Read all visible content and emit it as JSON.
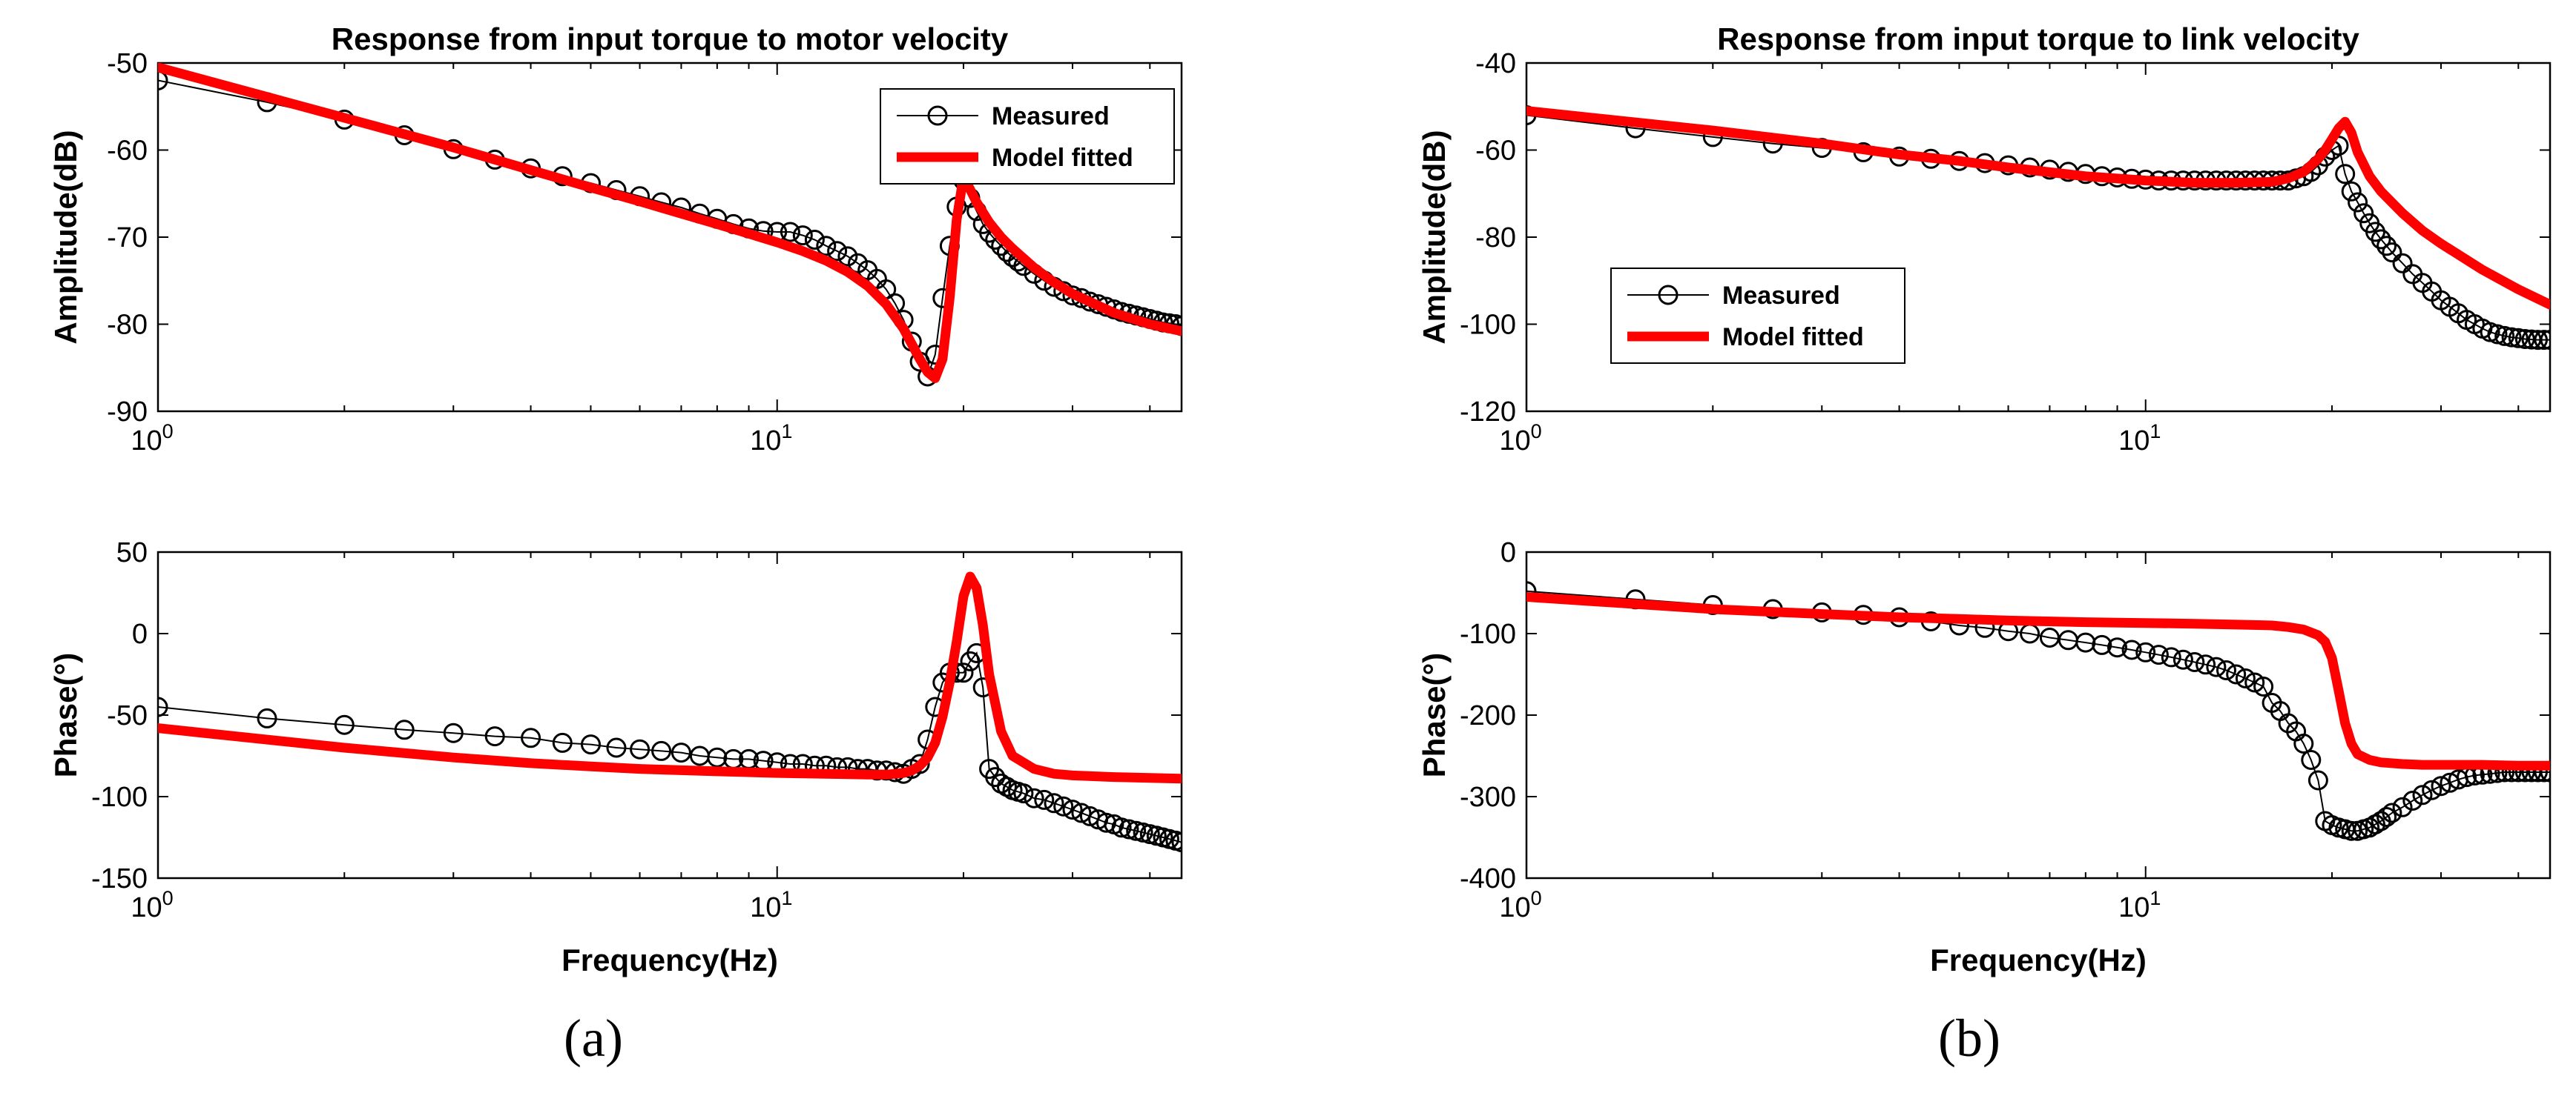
{
  "figure_labels": {
    "a": "(a)",
    "b": "(b)"
  },
  "colors": {
    "measured": "#000000",
    "model": "#ff0000",
    "axis": "#000000"
  },
  "chart_data": [
    {
      "type": "line",
      "panel": "a",
      "title": "Response from input torque to motor velocity",
      "xlabel": "",
      "ylabel": "Amplitude(dB)",
      "xscale": "log",
      "xlim": [
        1,
        45
      ],
      "ylim": [
        -90,
        -50
      ],
      "yticks": [
        -90,
        -80,
        -70,
        -60,
        -50
      ],
      "xtick_labels": [
        {
          "base": "10",
          "exp": "0"
        },
        {
          "base": "10",
          "exp": "1"
        }
      ],
      "legend": {
        "entries": [
          "Measured",
          "Model fitted"
        ],
        "position": "top-right"
      },
      "series": [
        {
          "name": "Measured",
          "style": "circles",
          "x": [
            1,
            1.5,
            2,
            2.5,
            3,
            3.5,
            4,
            4.5,
            5,
            5.5,
            6,
            6.5,
            7,
            7.5,
            8,
            8.5,
            9,
            9.5,
            10,
            10.5,
            11,
            11.5,
            12,
            12.5,
            13,
            13.5,
            14,
            14.5,
            15,
            15.5,
            16,
            16.5,
            17,
            17.5,
            18,
            18.5,
            19,
            19.5,
            20,
            20.5,
            21,
            21.5,
            22,
            22.5,
            23,
            23.5,
            24,
            24.5,
            25,
            26,
            27,
            28,
            29,
            30,
            31,
            32,
            33,
            34,
            35,
            36,
            37,
            38,
            39,
            40,
            41,
            42,
            43,
            44,
            45
          ],
          "y": [
            -52,
            -54.5,
            -56.5,
            -58.3,
            -59.9,
            -61.1,
            -62.1,
            -63,
            -63.8,
            -64.6,
            -65.3,
            -66,
            -66.6,
            -67.3,
            -67.9,
            -68.5,
            -69,
            -69.3,
            -69.4,
            -69.4,
            -69.8,
            -70.3,
            -71,
            -71.6,
            -72.2,
            -73,
            -73.8,
            -74.8,
            -76,
            -77.6,
            -79.5,
            -82,
            -84.3,
            -86,
            -83.5,
            -77,
            -71,
            -66.5,
            -63.5,
            -65.5,
            -67,
            -68.5,
            -69.5,
            -70.3,
            -71,
            -71.7,
            -72.3,
            -72.8,
            -73.3,
            -74.2,
            -75,
            -75.7,
            -76.2,
            -76.7,
            -77,
            -77.4,
            -77.7,
            -78,
            -78.3,
            -78.6,
            -78.8,
            -79,
            -79.2,
            -79.4,
            -79.6,
            -79.8,
            -79.9,
            -80,
            -80.2
          ]
        },
        {
          "name": "Model fitted",
          "style": "thick-line",
          "x": [
            1,
            2,
            3,
            4,
            5,
            6,
            7,
            8,
            9,
            10,
            11,
            12,
            13,
            14,
            15,
            16,
            17,
            17.5,
            18,
            18.5,
            19,
            19.5,
            20,
            21,
            22,
            23,
            24,
            26,
            28,
            30,
            35,
            40,
            45
          ],
          "y": [
            -50.5,
            -56.3,
            -59.7,
            -62.3,
            -64.3,
            -65.9,
            -67.3,
            -68.5,
            -69.6,
            -70.6,
            -71.6,
            -72.7,
            -74,
            -75.6,
            -77.7,
            -80.5,
            -84,
            -85.5,
            -86.2,
            -84,
            -77,
            -68,
            -63,
            -66,
            -68.3,
            -70,
            -71.3,
            -73.5,
            -75.2,
            -76.5,
            -78.7,
            -80,
            -80.8
          ]
        }
      ]
    },
    {
      "type": "line",
      "panel": "a",
      "title": "",
      "xlabel": "Frequency(Hz)",
      "ylabel": "Phase(°)",
      "xscale": "log",
      "xlim": [
        1,
        45
      ],
      "ylim": [
        -150,
        50
      ],
      "yticks": [
        -150,
        -100,
        -50,
        0,
        50
      ],
      "xtick_labels": [
        {
          "base": "10",
          "exp": "0"
        },
        {
          "base": "10",
          "exp": "1"
        }
      ],
      "series": [
        {
          "name": "Measured",
          "style": "circles",
          "x": [
            1,
            1.5,
            2,
            2.5,
            3,
            3.5,
            4,
            4.5,
            5,
            5.5,
            6,
            6.5,
            7,
            7.5,
            8,
            8.5,
            9,
            9.5,
            10,
            10.5,
            11,
            11.5,
            12,
            12.5,
            13,
            13.5,
            14,
            14.5,
            15,
            15.5,
            16,
            16.5,
            17,
            17.5,
            18,
            18.5,
            19,
            19.5,
            20,
            20.5,
            21,
            21.5,
            22,
            22.5,
            23,
            23.5,
            24,
            24.5,
            25,
            26,
            27,
            28,
            29,
            30,
            31,
            32,
            33,
            34,
            35,
            36,
            37,
            38,
            39,
            40,
            41,
            42,
            43,
            44,
            45
          ],
          "y": [
            -45,
            -52,
            -56,
            -59,
            -61,
            -63,
            -64,
            -67,
            -68,
            -70,
            -71,
            -72,
            -73,
            -75,
            -76,
            -77,
            -77,
            -78,
            -79,
            -80,
            -80,
            -81,
            -81,
            -82,
            -82,
            -83,
            -83,
            -84,
            -84,
            -85,
            -86,
            -83,
            -80,
            -65,
            -45,
            -30,
            -24,
            -24,
            -24,
            -17,
            -12,
            -33,
            -83,
            -88,
            -92,
            -94,
            -96,
            -97,
            -98,
            -101,
            -102,
            -104,
            -106,
            -108,
            -110,
            -112,
            -114,
            -116,
            -117,
            -119,
            -120,
            -121,
            -122,
            -123,
            -124,
            -125,
            -126,
            -127,
            -128
          ]
        },
        {
          "name": "Model fitted",
          "style": "thick-line",
          "x": [
            1,
            2,
            3,
            4,
            5,
            6,
            8,
            10,
            12,
            14,
            15,
            16,
            16.5,
            17,
            17.5,
            18,
            18.5,
            19,
            19.5,
            20,
            20.5,
            21,
            21.5,
            22,
            23,
            24,
            26,
            28,
            30,
            35,
            40,
            45
          ],
          "y": [
            -58,
            -70,
            -76,
            -79.5,
            -81.5,
            -83,
            -84.5,
            -85.5,
            -86,
            -86.5,
            -86.5,
            -85.5,
            -84,
            -81,
            -76,
            -67,
            -51,
            -30,
            -5,
            23,
            35,
            28,
            5,
            -25,
            -60,
            -75,
            -83,
            -86,
            -87,
            -88,
            -88.5,
            -89
          ]
        }
      ]
    },
    {
      "type": "line",
      "panel": "b",
      "title": "Response from input torque to link velocity",
      "xlabel": "",
      "ylabel": "Amplitude(dB)",
      "xscale": "log",
      "xlim": [
        1,
        45
      ],
      "ylim": [
        -120,
        -40
      ],
      "yticks": [
        -120,
        -100,
        -80,
        -60,
        -40
      ],
      "xtick_labels": [
        {
          "base": "10",
          "exp": "0"
        },
        {
          "base": "10",
          "exp": "1"
        }
      ],
      "legend": {
        "entries": [
          "Measured",
          "Model fitted"
        ],
        "position": "middle-left"
      },
      "series": [
        {
          "name": "Measured",
          "style": "circles",
          "x": [
            1,
            1.5,
            2,
            2.5,
            3,
            3.5,
            4,
            4.5,
            5,
            5.5,
            6,
            6.5,
            7,
            7.5,
            8,
            8.5,
            9,
            9.5,
            10,
            10.5,
            11,
            11.5,
            12,
            12.5,
            13,
            13.5,
            14,
            14.5,
            15,
            15.5,
            16,
            16.5,
            17,
            17.5,
            18,
            18.5,
            19,
            19.5,
            20,
            20.5,
            21,
            21.5,
            22,
            22.5,
            23,
            23.5,
            24,
            24.5,
            25,
            26,
            27,
            28,
            29,
            30,
            31,
            32,
            33,
            34,
            35,
            36,
            37,
            38,
            39,
            40,
            41,
            42,
            43,
            44,
            45
          ],
          "y": [
            -52,
            -55,
            -57,
            -58.5,
            -59.5,
            -60.5,
            -61.5,
            -62,
            -62.5,
            -63,
            -63.5,
            -64,
            -64.5,
            -65,
            -65.5,
            -66,
            -66.3,
            -66.6,
            -66.8,
            -67,
            -67,
            -67,
            -67,
            -67,
            -67,
            -67,
            -67,
            -67,
            -67,
            -67,
            -67,
            -67,
            -67,
            -66.5,
            -66,
            -65,
            -63.5,
            -61.5,
            -60,
            -59,
            -65.5,
            -69.5,
            -72,
            -74.5,
            -76.8,
            -78.8,
            -80.5,
            -82,
            -83.5,
            -86,
            -88.5,
            -90.5,
            -92.5,
            -94.5,
            -96,
            -97.5,
            -99,
            -100,
            -101,
            -101.8,
            -102.3,
            -102.7,
            -103,
            -103.2,
            -103.4,
            -103.5,
            -103.6,
            -103.6,
            -103.6
          ]
        },
        {
          "name": "Model fitted",
          "style": "thick-line",
          "x": [
            1,
            2,
            3,
            4,
            5,
            6,
            8,
            10,
            12,
            14,
            16,
            17,
            18,
            19,
            19.5,
            20,
            20.5,
            21,
            21.5,
            22,
            23,
            24,
            26,
            28,
            30,
            35,
            40,
            45
          ],
          "y": [
            -51,
            -55.5,
            -58.5,
            -61,
            -62.5,
            -64,
            -66,
            -67,
            -67.5,
            -67.5,
            -67.3,
            -66.5,
            -65,
            -62,
            -60,
            -57.5,
            -55,
            -53.5,
            -56,
            -60.5,
            -66,
            -69.5,
            -74.5,
            -78.5,
            -81.5,
            -87.5,
            -92,
            -95.5
          ]
        }
      ]
    },
    {
      "type": "line",
      "panel": "b",
      "title": "",
      "xlabel": "Frequency(Hz)",
      "ylabel": "Phase(°)",
      "xscale": "log",
      "xlim": [
        1,
        45
      ],
      "ylim": [
        -400,
        0
      ],
      "yticks": [
        -400,
        -300,
        -200,
        -100,
        0
      ],
      "xtick_labels": [
        {
          "base": "10",
          "exp": "0"
        },
        {
          "base": "10",
          "exp": "1"
        }
      ],
      "series": [
        {
          "name": "Measured",
          "style": "circles",
          "x": [
            1,
            1.5,
            2,
            2.5,
            3,
            3.5,
            4,
            4.5,
            5,
            5.5,
            6,
            6.5,
            7,
            7.5,
            8,
            8.5,
            9,
            9.5,
            10,
            10.5,
            11,
            11.5,
            12,
            12.5,
            13,
            13.5,
            14,
            14.5,
            15,
            15.5,
            16,
            16.5,
            17,
            17.5,
            18,
            18.5,
            19,
            19.5,
            20,
            20.5,
            21,
            21.5,
            22,
            22.5,
            23,
            23.5,
            24,
            24.5,
            25,
            26,
            27,
            28,
            29,
            30,
            31,
            32,
            33,
            34,
            35,
            36,
            37,
            38,
            39,
            40,
            41,
            42,
            43,
            44,
            45
          ],
          "y": [
            -48,
            -58,
            -65,
            -70,
            -74,
            -77,
            -80,
            -85,
            -90,
            -93,
            -97,
            -100,
            -105,
            -108,
            -111,
            -114,
            -117,
            -120,
            -123,
            -126,
            -129,
            -132,
            -135,
            -138,
            -141,
            -145,
            -150,
            -155,
            -160,
            -165,
            -185,
            -195,
            -210,
            -220,
            -235,
            -255,
            -280,
            -330,
            -335,
            -338,
            -340,
            -342,
            -342,
            -340,
            -338,
            -334,
            -330,
            -325,
            -320,
            -313,
            -305,
            -298,
            -292,
            -287,
            -283,
            -279,
            -276,
            -274,
            -273,
            -272,
            -271,
            -270,
            -270,
            -270,
            -270,
            -270,
            -270,
            -270,
            -270
          ]
        },
        {
          "name": "Model fitted",
          "style": "thick-line",
          "x": [
            1,
            2,
            3,
            4,
            5,
            6,
            8,
            10,
            12,
            14,
            16,
            17,
            18,
            19,
            19.5,
            20,
            20.5,
            21,
            21.5,
            22,
            23,
            24,
            26,
            28,
            30,
            35,
            40,
            45
          ],
          "y": [
            -55,
            -70,
            -76,
            -80,
            -82,
            -84,
            -86,
            -87,
            -88,
            -89,
            -90,
            -92,
            -95,
            -102,
            -110,
            -130,
            -170,
            -210,
            -235,
            -248,
            -255,
            -258,
            -260,
            -261,
            -261,
            -261,
            -262,
            -262
          ]
        }
      ]
    }
  ]
}
